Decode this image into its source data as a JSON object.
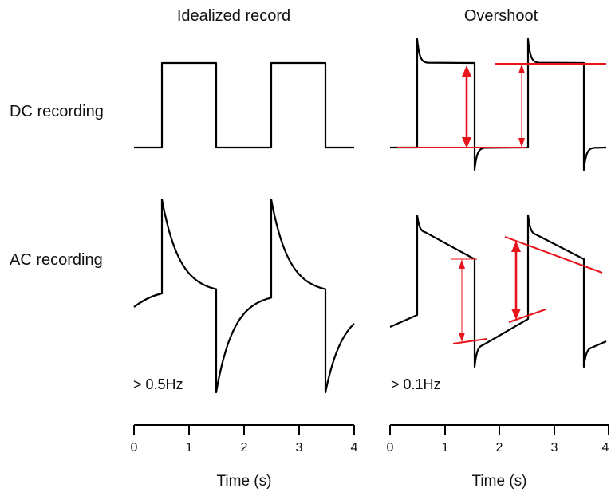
{
  "panels": [
    {
      "title": "Idealized record",
      "frequency_label": "> 0.5Hz",
      "x_ticks": [
        "0",
        "1",
        "2",
        "3",
        "4"
      ],
      "x_axis_title": "Time (s)"
    },
    {
      "title": "Overshoot",
      "frequency_label": "> 0.1Hz",
      "x_ticks": [
        "0",
        "1",
        "2",
        "3",
        "4"
      ],
      "x_axis_title": "Time (s)"
    }
  ],
  "rows": [
    {
      "label": "DC recording"
    },
    {
      "label": "AC recording"
    }
  ],
  "colors": {
    "trace": "#000000",
    "annotation": "#e8141b"
  }
}
